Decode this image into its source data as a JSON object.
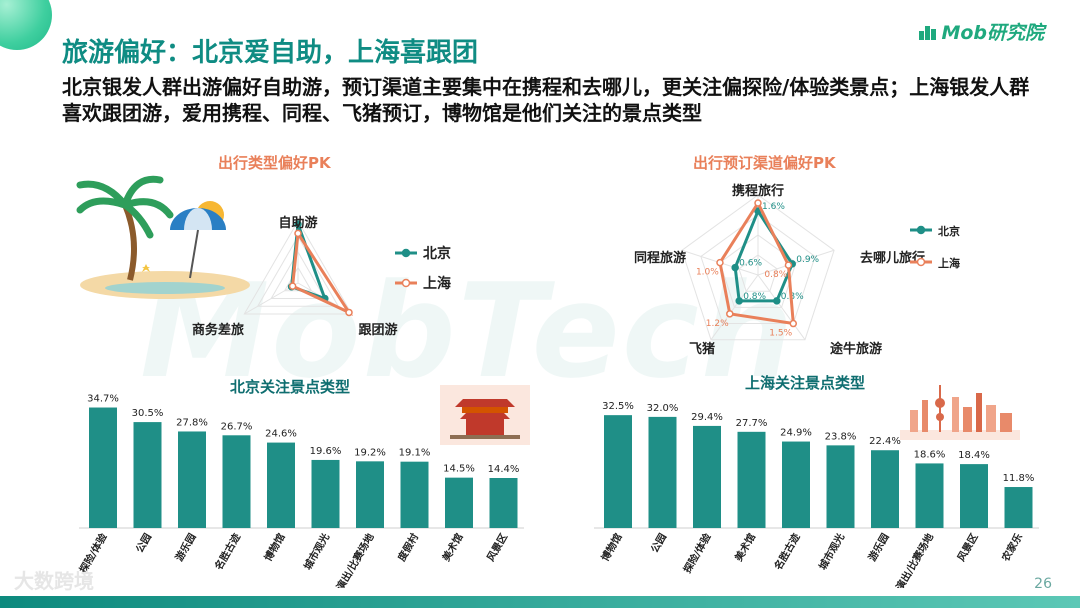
{
  "header": {
    "title": "旅游偏好：北京爱自助，上海喜跟团",
    "subtitle": "北京银发人群出游偏好自助游，预订渠道主要集中在携程和去哪儿，更关注偏探险/体验类景点；上海银发人群喜欢跟团游，爱用携程、同程、飞猪预订，博物馆是他们关注的景点类型",
    "logo": "Mob研究院",
    "watermark": "MobTech",
    "source": "大数跨境",
    "page_number": "26"
  },
  "colors": {
    "title": "#0f8c83",
    "beijing": "#1f8f87",
    "shanghai": "#e9805a",
    "bar": "#1f8f87",
    "section_title_orange": "#e9805a",
    "section_title_teal": "#0f6e70"
  },
  "chart_data": [
    {
      "type": "radar",
      "title": "出行类型偏好PK",
      "axes": [
        "自助游",
        "跟团游",
        "商务差旅"
      ],
      "legend": [
        "北京",
        "上海"
      ],
      "series": [
        {
          "name": "北京",
          "values": [
            0.95,
            0.5,
            0.12
          ]
        },
        {
          "name": "上海",
          "values": [
            0.8,
            0.95,
            0.1
          ]
        }
      ]
    },
    {
      "type": "radar",
      "title": "出行预订渠道偏好PK",
      "axes": [
        "携程旅行",
        "去哪儿旅行",
        "途牛旅游",
        "飞猪",
        "同程旅游"
      ],
      "legend": [
        "北京",
        "上海"
      ],
      "series": [
        {
          "name": "北京",
          "values": [
            1.6,
            0.9,
            0.8,
            0.8,
            0.6
          ]
        },
        {
          "name": "上海",
          "values": [
            1.8,
            0.8,
            1.5,
            1.2,
            1.0
          ]
        }
      ],
      "labels": {
        "北京": [
          "1.6%",
          "0.9%",
          "0.8%",
          "0.8%",
          "0.6%"
        ],
        "上海": [
          "",
          "0.8%",
          "1.5%",
          "1.2%",
          "1.0%"
        ]
      }
    },
    {
      "type": "bar",
      "title": "北京关注景点类型",
      "categories": [
        "探险/体验",
        "公园",
        "游乐园",
        "名胜古迹",
        "博物馆",
        "城市观光",
        "演出/比赛场地",
        "度假村",
        "美术馆",
        "风景区"
      ],
      "values": [
        34.7,
        30.5,
        27.8,
        26.7,
        24.6,
        19.6,
        19.2,
        19.1,
        14.5,
        14.4
      ],
      "value_labels": [
        "34.7%",
        "30.5%",
        "27.8%",
        "26.7%",
        "24.6%",
        "19.6%",
        "19.2%",
        "19.1%",
        "14.5%",
        "14.4%"
      ]
    },
    {
      "type": "bar",
      "title": "上海关注景点类型",
      "categories": [
        "博物馆",
        "公园",
        "探险/体验",
        "美术馆",
        "名胜古迹",
        "城市观光",
        "游乐园",
        "演出/比赛场地",
        "风景区",
        "农家乐"
      ],
      "values": [
        32.5,
        32.0,
        29.4,
        27.7,
        24.9,
        23.8,
        22.4,
        18.6,
        18.4,
        11.8
      ],
      "value_labels": [
        "32.5%",
        "32.0%",
        "29.4%",
        "27.7%",
        "24.9%",
        "23.8%",
        "22.4%",
        "18.6%",
        "18.4%",
        "11.8%"
      ]
    }
  ]
}
